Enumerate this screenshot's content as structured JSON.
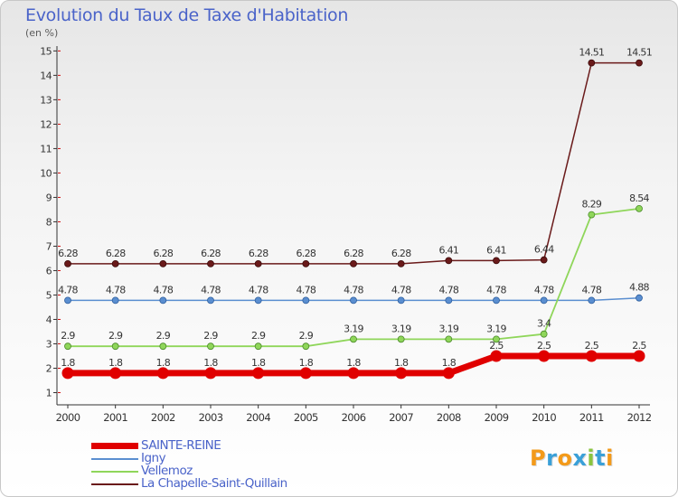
{
  "title": "Evolution du Taux de Taxe d'Habitation",
  "unit_label": "(en %)",
  "logo": {
    "text": "Proxiti"
  },
  "colors": {
    "sainte_reine": "#e00000",
    "igny": "#5a8ed0",
    "vellemoz": "#8fd65a",
    "chapelle": "#6a1a1a",
    "title": "#4a63c9"
  },
  "chart_data": {
    "type": "line",
    "title": "Evolution du Taux de Taxe d'Habitation",
    "ylabel": "(en %)",
    "xlabel": "",
    "ylim": [
      0.5,
      15.2
    ],
    "yticks": [
      1,
      2,
      3,
      4,
      5,
      6,
      7,
      8,
      9,
      10,
      11,
      12,
      13,
      14,
      15
    ],
    "categories": [
      "2000",
      "2001",
      "2002",
      "2003",
      "2004",
      "2005",
      "2006",
      "2007",
      "2008",
      "2009",
      "2010",
      "2011",
      "2012"
    ],
    "legend_position": "bottom-left",
    "grid": false,
    "series": [
      {
        "name": "SAINTE-REINE",
        "key": "sainte_reine",
        "values": [
          1.8,
          1.8,
          1.8,
          1.8,
          1.8,
          1.8,
          1.8,
          1.8,
          1.8,
          2.5,
          2.5,
          2.5,
          2.5
        ],
        "labels": [
          "1.8",
          "1.8",
          "1.8",
          "1.8",
          "1.8",
          "1.8",
          "1.8",
          "1.8",
          "1.8",
          "2.5",
          "2.5",
          "2.5",
          "2.5"
        ]
      },
      {
        "name": "Igny",
        "key": "igny",
        "values": [
          4.78,
          4.78,
          4.78,
          4.78,
          4.78,
          4.78,
          4.78,
          4.78,
          4.78,
          4.78,
          4.78,
          4.78,
          4.88
        ],
        "labels": [
          "4.78",
          "4.78",
          "4.78",
          "4.78",
          "4.78",
          "4.78",
          "4.78",
          "4.78",
          "4.78",
          "4.78",
          "4.78",
          "4.78",
          "4.88"
        ]
      },
      {
        "name": "Vellemoz",
        "key": "vellemoz",
        "values": [
          2.9,
          2.9,
          2.9,
          2.9,
          2.9,
          2.9,
          3.19,
          3.19,
          3.19,
          3.19,
          3.4,
          8.29,
          8.54
        ],
        "labels": [
          "2.9",
          "2.9",
          "2.9",
          "2.9",
          "2.9",
          "2.9",
          "3.19",
          "3.19",
          "3.19",
          "3.19",
          "3.4",
          "8.29",
          "8.54"
        ]
      },
      {
        "name": "La Chapelle-Saint-Quillain",
        "key": "chapelle",
        "values": [
          6.28,
          6.28,
          6.28,
          6.28,
          6.28,
          6.28,
          6.28,
          6.28,
          6.41,
          6.41,
          6.44,
          14.51,
          14.51
        ],
        "labels": [
          "6.28",
          "6.28",
          "6.28",
          "6.28",
          "6.28",
          "6.28",
          "6.28",
          "6.28",
          "6.41",
          "6.41",
          "6.44",
          "14.51",
          "14.51"
        ]
      }
    ]
  }
}
